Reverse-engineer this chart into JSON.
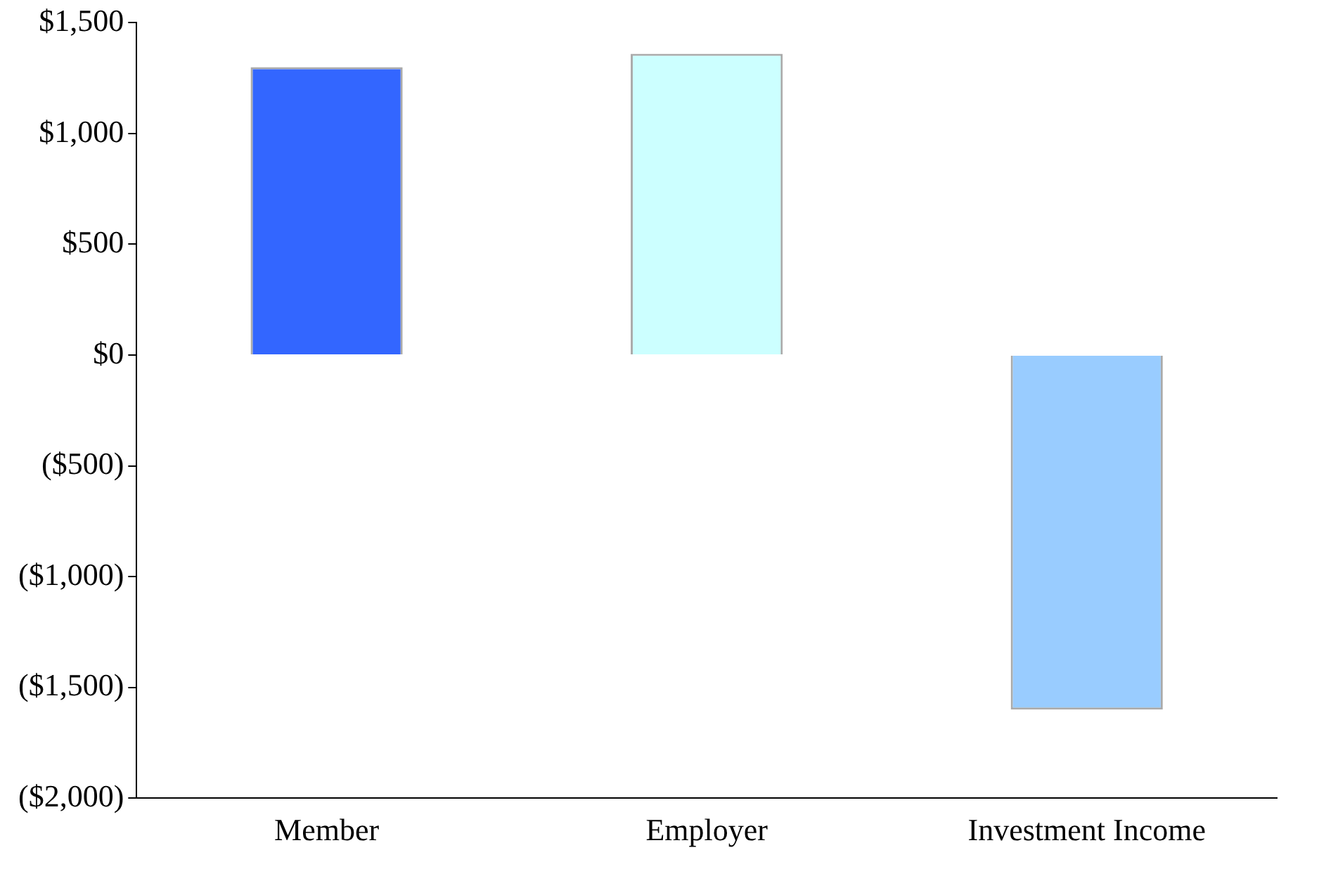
{
  "chart_data": {
    "type": "bar",
    "categories": [
      "Member",
      "Employer",
      "Investment Income"
    ],
    "values": [
      1300,
      1360,
      -1600
    ],
    "colors": [
      "#3366ff",
      "#ccffff",
      "#99ccff"
    ],
    "ylim": [
      -2000,
      1500
    ],
    "yticks": [
      {
        "value": -2000,
        "label": "($2,000)"
      },
      {
        "value": -1500,
        "label": "($1,500)"
      },
      {
        "value": -1000,
        "label": "($1,000)"
      },
      {
        "value": -500,
        "label": "($500)"
      },
      {
        "value": 0,
        "label": "$0"
      },
      {
        "value": 500,
        "label": "$500"
      },
      {
        "value": 1000,
        "label": "$1,000"
      },
      {
        "value": 1500,
        "label": "$1,500"
      }
    ],
    "grid": false,
    "legend": false
  }
}
